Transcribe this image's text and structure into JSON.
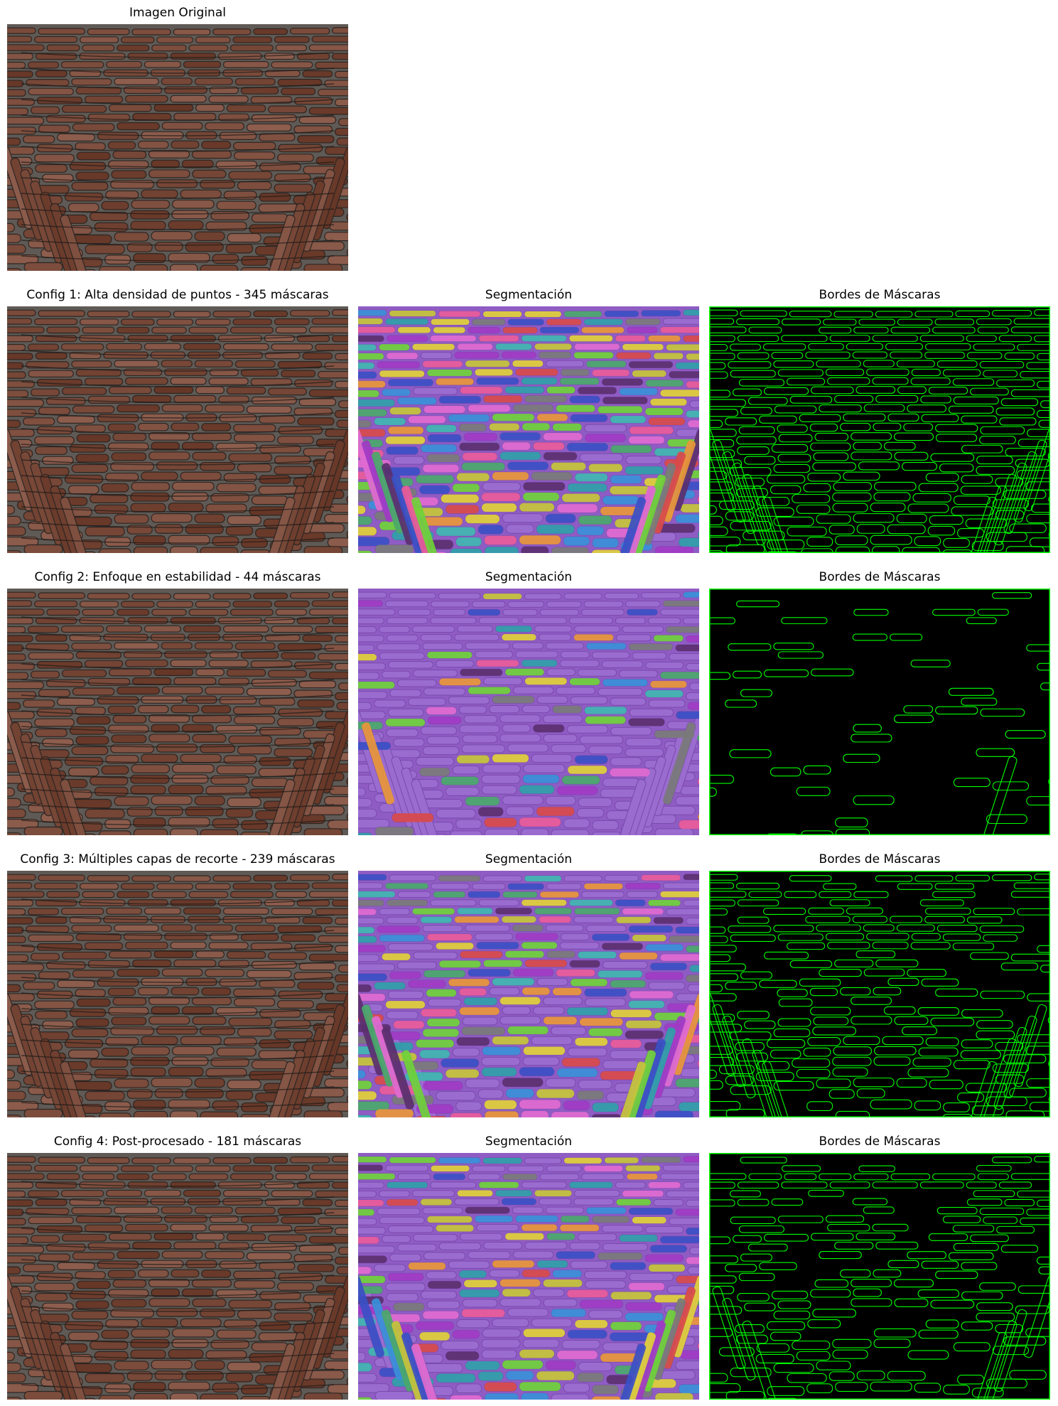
{
  "original": {
    "title": "Imagen Original",
    "image_icon": "brick-vault-photo"
  },
  "rows": [
    {
      "name": "config-1",
      "title": "Config 1: Alta densidad de puntos - 345 máscaras",
      "segmentation_title": "Segmentación",
      "borders_title": "Bordes de Máscaras",
      "mask_count": 345
    },
    {
      "name": "config-2",
      "title": "Config 2: Enfoque en estabilidad - 44 máscaras",
      "segmentation_title": "Segmentación",
      "borders_title": "Bordes de Máscaras",
      "mask_count": 44
    },
    {
      "name": "config-3",
      "title": "Config 3: Múltiples capas de recorte - 239 máscaras",
      "segmentation_title": "Segmentación",
      "borders_title": "Bordes de Máscaras",
      "mask_count": 239
    },
    {
      "name": "config-4",
      "title": "Config 4: Post-procesado - 181 máscaras",
      "segmentation_title": "Segmentación",
      "borders_title": "Bordes de Máscaras",
      "mask_count": 181
    }
  ],
  "colors": {
    "background": "#ffffff",
    "photo_mortar": "#5f5a55",
    "photo_brick": "#7a4a3a",
    "segmentation_base": "#8f5cc4",
    "border_line": "#00ff00",
    "border_background": "#000000"
  },
  "segment_palette": [
    "#3fb6b0",
    "#e85b9a",
    "#6fd13a",
    "#e8963a",
    "#3a4fc4",
    "#c4c43a",
    "#5a2f6e",
    "#4aa86a",
    "#d84a4a",
    "#7a7a7a",
    "#3a8fd8",
    "#e0d03a",
    "#a03ac4",
    "#e06ad0",
    "#2fa0a8"
  ]
}
